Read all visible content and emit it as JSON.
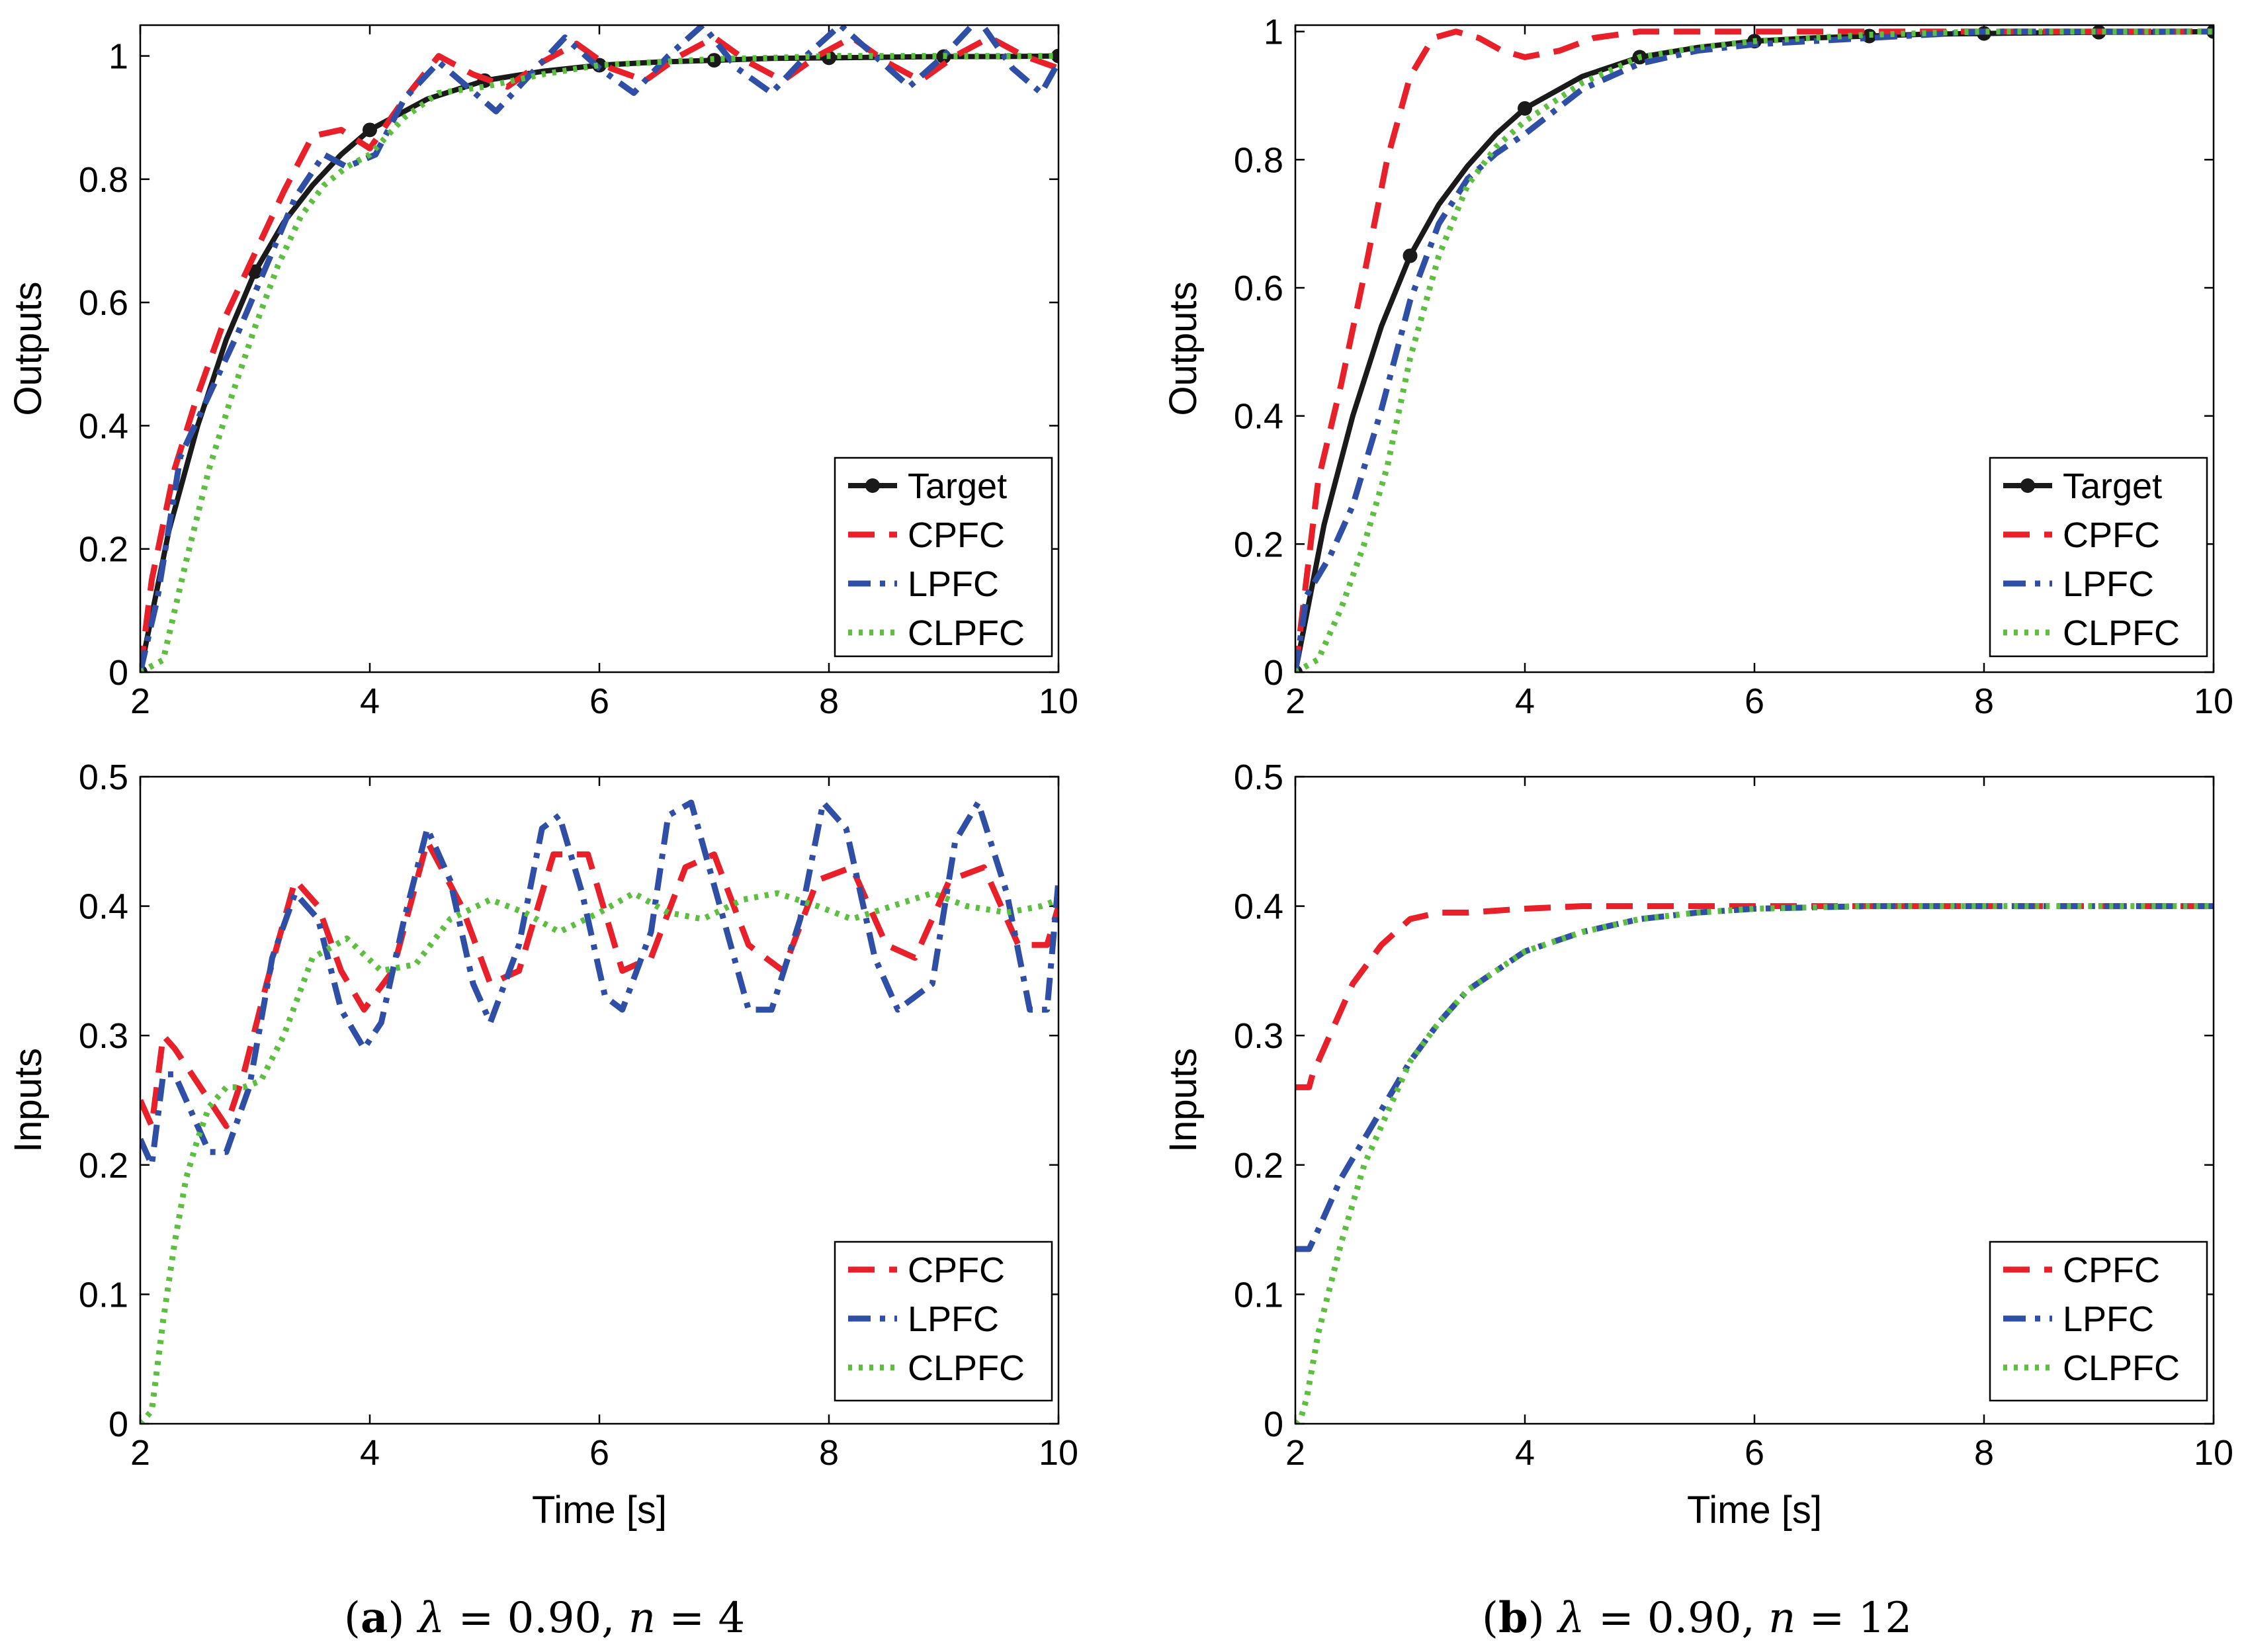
{
  "colors": {
    "Target": "#1a1a1a",
    "CPFC": "#e8202a",
    "LPFC": "#2f4fa6",
    "CLPFC": "#5cbf3f"
  },
  "captions": [
    {
      "letter": "a",
      "lambda_label": "λ",
      "lambda_value": "0.90",
      "n_label": "n",
      "n_value": "4"
    },
    {
      "letter": "b",
      "lambda_label": "λ",
      "lambda_value": "0.90",
      "n_label": "n",
      "n_value": "12"
    }
  ],
  "chart_data": [
    {
      "type": "line",
      "panel": "a-outputs",
      "xlabel": "",
      "ylabel": "Outputs",
      "xlim": [
        2,
        10
      ],
      "ylim": [
        0,
        1.05
      ],
      "xticks": [
        2,
        4,
        6,
        8,
        10
      ],
      "yticks": [
        0,
        0.2,
        0.4,
        0.6,
        0.8,
        1
      ],
      "xtick_labels": [
        "2",
        "4",
        "6",
        "8",
        "10"
      ],
      "ytick_labels": [
        "0",
        "0.2",
        "0.4",
        "0.6",
        "0.8",
        "1"
      ],
      "legend_position": "bottom-right",
      "series": [
        {
          "name": "Target",
          "style": "solid-markers",
          "x": [
            2,
            2.25,
            2.5,
            2.75,
            3,
            3.25,
            3.5,
            3.75,
            4,
            4.5,
            5,
            5.5,
            6,
            6.5,
            7,
            7.5,
            8,
            8.5,
            9,
            9.5,
            10
          ],
          "y": [
            0,
            0.23,
            0.4,
            0.54,
            0.65,
            0.73,
            0.79,
            0.84,
            0.88,
            0.93,
            0.96,
            0.975,
            0.985,
            0.99,
            0.993,
            0.996,
            0.997,
            0.998,
            0.999,
            0.999,
            1.0
          ],
          "markers_x": [
            2,
            3,
            4,
            5,
            6,
            7,
            8,
            9,
            10
          ],
          "markers_y": [
            0,
            0.65,
            0.88,
            0.96,
            0.985,
            0.993,
            0.997,
            0.999,
            1.0
          ]
        },
        {
          "name": "CPFC",
          "style": "dashed",
          "x": [
            2,
            2.1,
            2.3,
            2.5,
            2.75,
            3,
            3.25,
            3.5,
            3.75,
            4,
            4.3,
            4.6,
            4.9,
            5.2,
            5.5,
            5.8,
            6.1,
            6.4,
            6.7,
            7.0,
            7.3,
            7.6,
            7.9,
            8.2,
            8.5,
            8.8,
            9.1,
            9.4,
            9.7,
            10
          ],
          "y": [
            0,
            0.15,
            0.33,
            0.45,
            0.58,
            0.68,
            0.78,
            0.87,
            0.88,
            0.85,
            0.93,
            1.0,
            0.97,
            0.95,
            0.99,
            1.02,
            0.98,
            0.96,
            1.0,
            1.03,
            0.99,
            0.96,
            1.0,
            1.03,
            0.99,
            0.96,
            1.0,
            1.03,
            1.0,
            0.98
          ]
        },
        {
          "name": "LPFC",
          "style": "dashdot",
          "x": [
            2,
            2.15,
            2.35,
            2.6,
            2.85,
            3.1,
            3.35,
            3.6,
            3.8,
            4.05,
            4.3,
            4.6,
            4.85,
            5.1,
            5.4,
            5.7,
            6.0,
            6.3,
            6.6,
            6.9,
            7.2,
            7.5,
            7.8,
            8.1,
            8.4,
            8.7,
            9.0,
            9.3,
            9.6,
            9.85,
            10
          ],
          "y": [
            0,
            0.12,
            0.35,
            0.45,
            0.55,
            0.66,
            0.77,
            0.84,
            0.82,
            0.84,
            0.93,
            0.99,
            0.95,
            0.91,
            0.97,
            1.03,
            0.98,
            0.94,
            1.0,
            1.05,
            0.98,
            0.94,
            1.0,
            1.05,
            1.0,
            0.95,
            1.0,
            1.06,
            0.98,
            0.94,
            0.99
          ]
        },
        {
          "name": "CLPFC",
          "style": "dotted",
          "x": [
            2,
            2.2,
            2.4,
            2.6,
            2.8,
            3.0,
            3.2,
            3.4,
            3.6,
            3.8,
            4.0,
            4.3,
            4.6,
            5.0,
            5.5,
            6.0,
            6.5,
            7.0,
            7.5,
            8.0,
            9.0,
            10
          ],
          "y": [
            0,
            0.02,
            0.18,
            0.33,
            0.45,
            0.56,
            0.66,
            0.74,
            0.79,
            0.82,
            0.84,
            0.9,
            0.94,
            0.95,
            0.97,
            0.985,
            0.99,
            0.995,
            0.997,
            1.0,
            1.0,
            1.0
          ]
        }
      ]
    },
    {
      "type": "line",
      "panel": "b-outputs",
      "xlabel": "",
      "ylabel": "Outputs",
      "xlim": [
        2,
        10
      ],
      "ylim": [
        0,
        1.01
      ],
      "xticks": [
        2,
        4,
        6,
        8,
        10
      ],
      "yticks": [
        0,
        0.2,
        0.4,
        0.6,
        0.8,
        1
      ],
      "xtick_labels": [
        "2",
        "4",
        "6",
        "8",
        "10"
      ],
      "ytick_labels": [
        "0",
        "0.2",
        "0.4",
        "0.6",
        "0.8",
        "1"
      ],
      "legend_position": "bottom-right",
      "series": [
        {
          "name": "Target",
          "style": "solid-markers",
          "x": [
            2,
            2.25,
            2.5,
            2.75,
            3,
            3.25,
            3.5,
            3.75,
            4,
            4.5,
            5,
            5.5,
            6,
            6.5,
            7,
            7.5,
            8,
            8.5,
            9,
            9.5,
            10
          ],
          "y": [
            0,
            0.23,
            0.4,
            0.54,
            0.65,
            0.73,
            0.79,
            0.84,
            0.88,
            0.93,
            0.96,
            0.975,
            0.985,
            0.99,
            0.993,
            0.996,
            0.997,
            0.998,
            0.999,
            0.999,
            1.0
          ],
          "markers_x": [
            2,
            3,
            4,
            5,
            6,
            7,
            8,
            9,
            10
          ],
          "markers_y": [
            0,
            0.65,
            0.88,
            0.96,
            0.985,
            0.993,
            0.997,
            0.999,
            1.0
          ]
        },
        {
          "name": "CPFC",
          "style": "dashed",
          "x": [
            2,
            2.2,
            2.4,
            2.6,
            2.8,
            3.0,
            3.2,
            3.4,
            3.6,
            3.8,
            4.0,
            4.3,
            4.6,
            5.0,
            5.5,
            6.0,
            7.0,
            8.0,
            10
          ],
          "y": [
            0,
            0.3,
            0.45,
            0.62,
            0.8,
            0.93,
            0.99,
            1.0,
            0.99,
            0.97,
            0.96,
            0.97,
            0.99,
            1.0,
            1.0,
            1.0,
            1.0,
            1.0,
            1.0
          ]
        },
        {
          "name": "LPFC",
          "style": "dashdot",
          "x": [
            2,
            2.1,
            2.3,
            2.5,
            2.75,
            3.0,
            3.25,
            3.5,
            3.75,
            4.0,
            4.5,
            5.0,
            5.5,
            6.0,
            7.0,
            8.0,
            9.0,
            10
          ],
          "y": [
            0,
            0.12,
            0.18,
            0.26,
            0.41,
            0.58,
            0.7,
            0.77,
            0.81,
            0.84,
            0.91,
            0.95,
            0.97,
            0.98,
            0.99,
            1.0,
            1.0,
            1.0
          ]
        },
        {
          "name": "CLPFC",
          "style": "dotted",
          "x": [
            2,
            2.2,
            2.4,
            2.6,
            2.8,
            3.0,
            3.25,
            3.5,
            3.75,
            4.0,
            4.5,
            5.0,
            5.5,
            6.0,
            7.0,
            8.0,
            9.0,
            10
          ],
          "y": [
            0,
            0.02,
            0.1,
            0.2,
            0.32,
            0.49,
            0.65,
            0.76,
            0.82,
            0.86,
            0.92,
            0.96,
            0.975,
            0.985,
            0.995,
            1.0,
            1.0,
            1.0
          ]
        }
      ]
    },
    {
      "type": "line",
      "panel": "a-inputs",
      "xlabel": "Time [s]",
      "ylabel": "Inputs",
      "xlim": [
        2,
        10
      ],
      "ylim": [
        0,
        0.5
      ],
      "xticks": [
        2,
        4,
        6,
        8,
        10
      ],
      "yticks": [
        0,
        0.1,
        0.2,
        0.3,
        0.4,
        0.5
      ],
      "xtick_labels": [
        "2",
        "4",
        "6",
        "8",
        "10"
      ],
      "ytick_labels": [
        "0",
        "0.1",
        "0.2",
        "0.3",
        "0.4",
        "0.5"
      ],
      "legend_position": "bottom-right",
      "series": [
        {
          "name": "CPFC",
          "style": "dashed",
          "x": [
            2,
            2.1,
            2.2,
            2.3,
            2.45,
            2.6,
            2.75,
            2.9,
            3.1,
            3.35,
            3.55,
            3.75,
            3.95,
            4.2,
            4.5,
            4.8,
            5.05,
            5.3,
            5.6,
            5.9,
            6.2,
            6.45,
            6.75,
            7.0,
            7.3,
            7.6,
            7.9,
            8.2,
            8.5,
            8.75,
            9.05,
            9.35,
            9.65,
            9.9,
            10
          ],
          "y": [
            0.25,
            0.23,
            0.3,
            0.29,
            0.27,
            0.25,
            0.23,
            0.27,
            0.34,
            0.42,
            0.4,
            0.35,
            0.32,
            0.35,
            0.45,
            0.4,
            0.34,
            0.35,
            0.44,
            0.44,
            0.35,
            0.36,
            0.43,
            0.44,
            0.37,
            0.35,
            0.42,
            0.43,
            0.37,
            0.36,
            0.42,
            0.43,
            0.37,
            0.37,
            0.4
          ]
        },
        {
          "name": "LPFC",
          "style": "dashdot",
          "x": [
            2,
            2.1,
            2.2,
            2.3,
            2.45,
            2.6,
            2.75,
            2.95,
            3.15,
            3.35,
            3.55,
            3.75,
            3.95,
            4.1,
            4.3,
            4.5,
            4.7,
            4.9,
            5.05,
            5.3,
            5.5,
            5.65,
            5.85,
            6.05,
            6.2,
            6.45,
            6.6,
            6.8,
            7.05,
            7.3,
            7.5,
            7.75,
            7.95,
            8.15,
            8.4,
            8.6,
            8.9,
            9.1,
            9.3,
            9.55,
            9.75,
            9.9,
            10
          ],
          "y": [
            0.22,
            0.2,
            0.27,
            0.27,
            0.24,
            0.21,
            0.21,
            0.26,
            0.36,
            0.41,
            0.39,
            0.32,
            0.29,
            0.31,
            0.39,
            0.46,
            0.42,
            0.34,
            0.31,
            0.37,
            0.46,
            0.47,
            0.41,
            0.33,
            0.32,
            0.38,
            0.47,
            0.48,
            0.4,
            0.32,
            0.32,
            0.39,
            0.48,
            0.46,
            0.36,
            0.32,
            0.34,
            0.45,
            0.48,
            0.41,
            0.32,
            0.32,
            0.42
          ]
        },
        {
          "name": "CLPFC",
          "style": "dotted",
          "x": [
            2,
            2.1,
            2.2,
            2.3,
            2.4,
            2.5,
            2.6,
            2.75,
            2.9,
            3.05,
            3.25,
            3.5,
            3.8,
            4.1,
            4.4,
            4.7,
            5.05,
            5.35,
            5.65,
            6.0,
            6.3,
            6.6,
            6.9,
            7.25,
            7.55,
            7.9,
            8.2,
            8.55,
            8.9,
            9.2,
            9.55,
            9.85,
            10
          ],
          "y": [
            0,
            0.01,
            0.08,
            0.14,
            0.19,
            0.22,
            0.245,
            0.26,
            0.26,
            0.265,
            0.3,
            0.36,
            0.375,
            0.35,
            0.355,
            0.39,
            0.405,
            0.395,
            0.38,
            0.395,
            0.41,
            0.395,
            0.39,
            0.405,
            0.41,
            0.4,
            0.39,
            0.4,
            0.41,
            0.4,
            0.395,
            0.4,
            0.405
          ]
        }
      ]
    },
    {
      "type": "line",
      "panel": "b-inputs",
      "xlabel": "Time [s]",
      "ylabel": "Inputs",
      "xlim": [
        2,
        10
      ],
      "ylim": [
        0,
        0.5
      ],
      "xticks": [
        2,
        4,
        6,
        8,
        10
      ],
      "yticks": [
        0,
        0.1,
        0.2,
        0.3,
        0.4,
        0.5
      ],
      "xtick_labels": [
        "2",
        "4",
        "6",
        "8",
        "10"
      ],
      "ytick_labels": [
        "0",
        "0.1",
        "0.2",
        "0.3",
        "0.4",
        "0.5"
      ],
      "legend_position": "bottom-right",
      "series": [
        {
          "name": "CPFC",
          "style": "dashed",
          "x": [
            2,
            2.05,
            2.12,
            2.15,
            2.3,
            2.5,
            2.75,
            3.0,
            3.25,
            3.5,
            4.0,
            4.5,
            5.0,
            6.0,
            7.0,
            8.0,
            10
          ],
          "y": [
            0.26,
            0.26,
            0.26,
            0.27,
            0.3,
            0.34,
            0.37,
            0.39,
            0.395,
            0.395,
            0.398,
            0.4,
            0.4,
            0.4,
            0.4,
            0.4,
            0.4
          ]
        },
        {
          "name": "LPFC",
          "style": "dashdot",
          "x": [
            2,
            2.05,
            2.12,
            2.2,
            2.4,
            2.6,
            2.8,
            3.0,
            3.25,
            3.5,
            3.75,
            4.0,
            4.5,
            5.0,
            5.5,
            6.0,
            7.0,
            8.0,
            10
          ],
          "y": [
            0.135,
            0.135,
            0.135,
            0.15,
            0.19,
            0.22,
            0.25,
            0.28,
            0.31,
            0.335,
            0.35,
            0.365,
            0.38,
            0.39,
            0.395,
            0.398,
            0.4,
            0.4,
            0.4
          ]
        },
        {
          "name": "CLPFC",
          "style": "dotted",
          "x": [
            2,
            2.05,
            2.1,
            2.2,
            2.4,
            2.6,
            2.8,
            3.0,
            3.25,
            3.5,
            3.75,
            4.0,
            4.5,
            5.0,
            5.5,
            6.0,
            7.0,
            8.0,
            10
          ],
          "y": [
            0,
            0.005,
            0.02,
            0.07,
            0.14,
            0.2,
            0.24,
            0.28,
            0.31,
            0.335,
            0.35,
            0.365,
            0.38,
            0.39,
            0.395,
            0.398,
            0.4,
            0.4,
            0.4
          ]
        }
      ]
    }
  ]
}
